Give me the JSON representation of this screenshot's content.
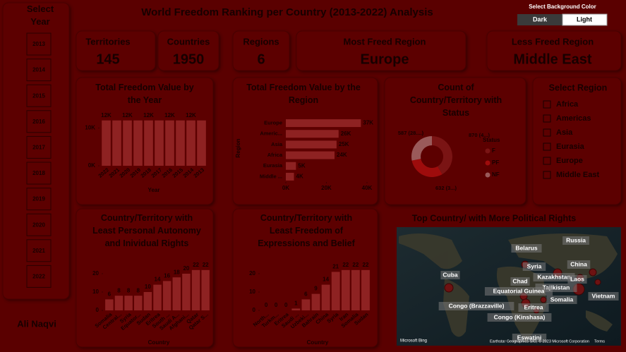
{
  "header": {
    "title": "World Freedom Ranking per Country (2013-2022) Analysis"
  },
  "background_toggle": {
    "label": "Select Background Color",
    "options": [
      "Dark",
      "Light"
    ]
  },
  "year_slicer": {
    "title": "Select Year",
    "years": [
      "2013",
      "2014",
      "2015",
      "2016",
      "2017",
      "2018",
      "2019",
      "2020",
      "2021",
      "2022"
    ]
  },
  "author": "Ali Naqvi",
  "kpis": [
    {
      "label": "Territories",
      "value": "145"
    },
    {
      "label": "Countries",
      "value": "1950"
    },
    {
      "label": "Regions",
      "value": "6"
    },
    {
      "label": "Most Freed Region",
      "value": "Europe"
    },
    {
      "label": "Less Freed Region",
      "value": "Middle East"
    }
  ],
  "region_slicer": {
    "title": "Select Region",
    "options": [
      "Africa",
      "Americas",
      "Asia",
      "Eurasia",
      "Europe",
      "Middle East"
    ]
  },
  "chart_data": [
    {
      "type": "bar",
      "title": "Total Freedom Value by the Year",
      "x_label": "Year",
      "color": "#8e2222",
      "categories": [
        "2022",
        "2021",
        "2020",
        "2019",
        "2018",
        "2017",
        "2016",
        "2015",
        "2014",
        "2013"
      ],
      "values": [
        12000,
        12000,
        12000,
        12000,
        12000,
        12000,
        12000,
        12000,
        12000,
        12000
      ],
      "value_labels": [
        "12K",
        null,
        "12K",
        null,
        "12K",
        null,
        "12K",
        null,
        "12K",
        null
      ],
      "ylim": [
        0,
        14000
      ],
      "yticks": [
        {
          "value": 0,
          "label": "0K"
        },
        {
          "value": 10000,
          "label": "10K"
        }
      ]
    },
    {
      "type": "bar",
      "orientation": "horizontal",
      "title": "Total Freedom Value by the Region",
      "y_label": "Region",
      "color": "#8e2222",
      "categories": [
        "Europe",
        "Americ...",
        "Asia",
        "Africa",
        "Eurasia",
        "Middle ..."
      ],
      "values": [
        37000,
        26000,
        25000,
        24000,
        5000,
        4000
      ],
      "value_labels": [
        "37K",
        "26K",
        "25K",
        "24K",
        "5K",
        "4K"
      ],
      "xlim": [
        0,
        40000
      ],
      "xticks": [
        {
          "value": 0,
          "label": "0K"
        },
        {
          "value": 20000,
          "label": "20K"
        },
        {
          "value": 40000,
          "label": "40K"
        }
      ]
    },
    {
      "type": "pie",
      "title": "Count of Country/Territory with Status",
      "legend_title": "Status",
      "categories": [
        "F",
        "PF",
        "NF"
      ],
      "values": [
        870,
        632,
        587
      ],
      "value_labels": [
        "870 (4...)",
        "632 (3...)",
        "587 (28....)"
      ],
      "colors": [
        "#7a1414",
        "#9e0c0c",
        "#9a5a5a"
      ]
    },
    {
      "type": "bar",
      "title": "Country/Territory with Least Personal Autonomy and Inividual Rights",
      "x_label": "Country",
      "color": "#8e2222",
      "categories": [
        "Somalia",
        "Central...",
        "Syria",
        "Equator...",
        "Sudan",
        "Eritrea",
        "South ...",
        "Saudi A...",
        "Afghani...",
        "Qatar",
        "Qatar S..."
      ],
      "values": [
        6,
        8,
        8,
        8,
        10,
        14,
        16,
        18,
        20,
        22,
        22
      ],
      "ylim": [
        0,
        25
      ],
      "yticks": [
        0,
        10,
        20
      ]
    },
    {
      "type": "bar",
      "title": "Country/Territory with Least Freedom of Expressions and Belief",
      "x_label": "Country",
      "color": "#8e2222",
      "categories": [
        "North...",
        "Turkm...",
        "Eritrea",
        "Saudi ...",
        "Uzbeki...",
        "Bahrain",
        "China",
        "Syria",
        "Iran",
        "Somalia",
        "Sudan"
      ],
      "values": [
        0,
        0,
        0,
        1,
        6,
        9,
        14,
        21,
        22,
        22,
        22
      ],
      "ylim": [
        0,
        25
      ],
      "yticks": [
        0,
        10,
        20
      ]
    }
  ],
  "map": {
    "title": "Top Country/ with More Political Rights",
    "labels": [
      "Russia",
      "Belarus",
      "China",
      "Cuba",
      "Syria",
      "Kazakhstan",
      "Laos",
      "Chad",
      "Tajikistan",
      "Equatorial Guinea",
      "Vietnam",
      "Somalia",
      "Congo (Brazzaville)",
      "Eritrea",
      "Congo (Kinshasa)",
      "Eswatini"
    ],
    "brand": "Microsoft Bing",
    "credits": "Earthstar Geographics SIO, © 2023 Microsoft Corporation",
    "terms": "Terms"
  }
}
